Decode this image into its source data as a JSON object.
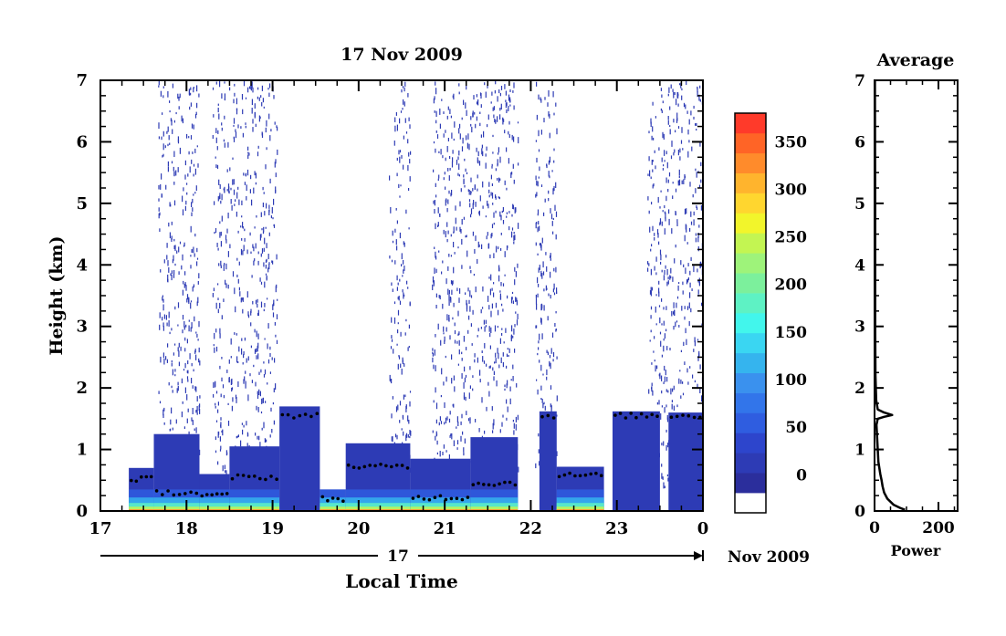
{
  "chart_data": [
    {
      "type": "heatmap",
      "title": "17 Nov 2009",
      "xlabel": "Local Time",
      "ylabel": "Height (km)",
      "xlim": [
        17,
        24
      ],
      "ylim": [
        0,
        7
      ],
      "x_ticks": [
        "17",
        "18",
        "19",
        "20",
        "21",
        "22",
        "23",
        "0"
      ],
      "y_ticks": [
        "0",
        "1",
        "2",
        "3",
        "4",
        "5",
        "6",
        "7"
      ],
      "date_axis": {
        "day": "17",
        "month_year": "Nov 2009"
      },
      "colorbar": {
        "min": -40,
        "max": 380,
        "ticks": [
          "0",
          "50",
          "100",
          "150",
          "200",
          "250",
          "300",
          "350"
        ],
        "tick_values": [
          0,
          50,
          100,
          150,
          200,
          250,
          300,
          350
        ],
        "colors": [
          "#ffffff",
          "#2b2e9c",
          "#2d3bb5",
          "#2d45cc",
          "#2f5de0",
          "#3275ea",
          "#3a91ee",
          "#35b4ee",
          "#3ad6f2",
          "#42f6ec",
          "#5ef2c4",
          "#7cf09c",
          "#9ef37a",
          "#c3f552",
          "#f2f52b",
          "#ffd62f",
          "#ffb42d",
          "#ff8b2b",
          "#ff6426",
          "#ff3a2a"
        ]
      },
      "cloud_segments": [
        {
          "x0": 17.33,
          "x1": 17.62,
          "top": 0.7,
          "base": 0.52
        },
        {
          "x0": 17.62,
          "x1": 18.15,
          "top": 1.25,
          "base": 0.3
        },
        {
          "x0": 18.15,
          "x1": 18.5,
          "top": 0.6,
          "base": 0.25
        },
        {
          "x0": 18.5,
          "x1": 19.08,
          "top": 1.05,
          "base": 0.55
        },
        {
          "x0": 19.08,
          "x1": 19.55,
          "top": 1.7,
          "base": 1.55
        },
        {
          "x0": 19.55,
          "x1": 19.85,
          "top": 0.35,
          "base": 0.2
        },
        {
          "x0": 19.85,
          "x1": 20.6,
          "top": 1.1,
          "base": 0.72
        },
        {
          "x0": 20.6,
          "x1": 21.3,
          "top": 0.85,
          "base": 0.22
        },
        {
          "x0": 21.3,
          "x1": 21.85,
          "top": 1.2,
          "base": 0.45
        },
        {
          "x0": 22.1,
          "x1": 22.3,
          "top": 1.62,
          "base": 1.55
        },
        {
          "x0": 22.3,
          "x1": 22.85,
          "top": 0.72,
          "base": 0.58
        },
        {
          "x0": 22.95,
          "x1": 23.5,
          "top": 1.62,
          "base": 1.55
        },
        {
          "x0": 23.6,
          "x1": 24.0,
          "top": 1.6,
          "base": 1.55
        }
      ],
      "noise_columns": [
        [
          17.67,
          18.15
        ],
        [
          18.3,
          19.05
        ],
        [
          20.35,
          20.6
        ],
        [
          20.85,
          21.85
        ],
        [
          22.05,
          22.3
        ],
        [
          23.35,
          24.0
        ]
      ]
    },
    {
      "type": "line",
      "title": "Average",
      "xlabel": "Power",
      "xlim": [
        0,
        260
      ],
      "ylim": [
        0,
        7
      ],
      "x_ticks": [
        "0",
        "200"
      ],
      "y_ticks": [
        "0",
        "1",
        "2",
        "3",
        "4",
        "5",
        "6",
        "7"
      ],
      "x": [
        95,
        80,
        60,
        40,
        30,
        25,
        22,
        18,
        12,
        10,
        8,
        6,
        10,
        30,
        55,
        30,
        10,
        5,
        3,
        2,
        2,
        1
      ],
      "y": [
        0.02,
        0.05,
        0.1,
        0.2,
        0.3,
        0.4,
        0.5,
        0.6,
        0.8,
        1.0,
        1.2,
        1.4,
        1.5,
        1.53,
        1.56,
        1.6,
        1.65,
        1.8,
        2.2,
        3.0,
        5.0,
        7.0
      ]
    }
  ]
}
